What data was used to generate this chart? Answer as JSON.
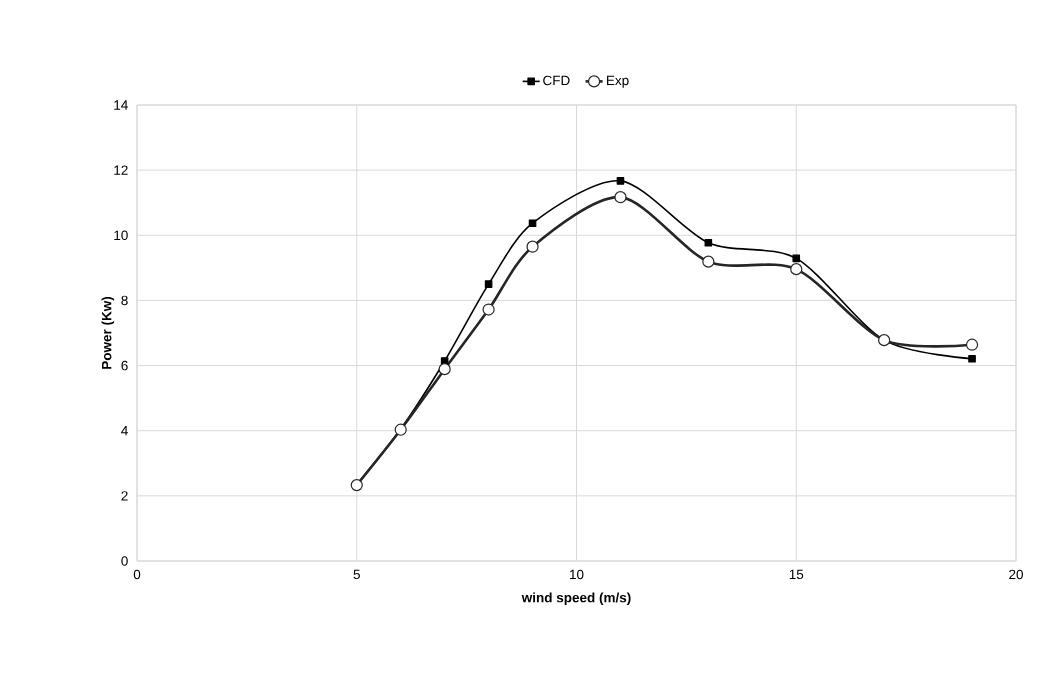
{
  "chart_data": {
    "type": "line",
    "xlabel": "wind speed (m/s)",
    "ylabel": "Power (Kw)",
    "x": [
      5,
      6,
      7,
      8,
      9,
      11,
      13,
      15,
      17,
      19
    ],
    "series": [
      {
        "name": "CFD",
        "color": "#000000",
        "marker": "square",
        "values": [
          2.35,
          4.05,
          6.14,
          8.5,
          10.37,
          11.67,
          9.77,
          9.29,
          6.78,
          6.21
        ]
      },
      {
        "name": "Exp",
        "color": "#262626",
        "marker": "circle",
        "values": [
          2.33,
          4.03,
          5.89,
          7.72,
          9.65,
          11.17,
          9.19,
          8.96,
          6.78,
          6.64
        ]
      }
    ],
    "xlim": [
      0,
      20
    ],
    "xticks": [
      0,
      5,
      10,
      15,
      20
    ],
    "ylim": [
      0,
      14
    ],
    "yticks": [
      0,
      2,
      4,
      6,
      8,
      10,
      12,
      14
    ],
    "grid": true,
    "legend": "top",
    "line_style": "solid"
  }
}
